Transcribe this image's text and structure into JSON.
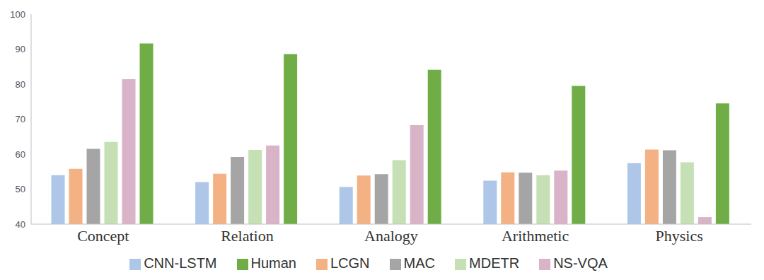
{
  "chart_data": {
    "type": "bar",
    "categories": [
      "Concept",
      "Relation",
      "Analogy",
      "Arithmetic",
      "Physics"
    ],
    "series": [
      {
        "name": "CNN-LSTM",
        "color": "#aec6e8",
        "values": [
          54,
          52,
          50.6,
          52.4,
          57.4
        ]
      },
      {
        "name": "LCGN",
        "color": "#f4b183",
        "values": [
          55.8,
          54.4,
          53.9,
          54.8,
          61.3
        ]
      },
      {
        "name": "MAC",
        "color": "#a5a5a5",
        "values": [
          61.5,
          59.2,
          54.3,
          54.7,
          61.1
        ]
      },
      {
        "name": "MDETR",
        "color": "#c5e0b4",
        "values": [
          63.5,
          61.2,
          58.3,
          54,
          57.7
        ]
      },
      {
        "name": "NS-VQA",
        "color": "#d9b3c8",
        "values": [
          81.4,
          62.5,
          68.3,
          55.3,
          42
        ]
      },
      {
        "name": "Human",
        "color": "#70ad47",
        "values": [
          91.6,
          88.6,
          84.1,
          79.5,
          74.5
        ]
      }
    ],
    "ylim": [
      40,
      100
    ],
    "yticks": [
      40,
      50,
      60,
      70,
      80,
      90,
      100
    ],
    "grid": false,
    "legend": "bottom"
  }
}
